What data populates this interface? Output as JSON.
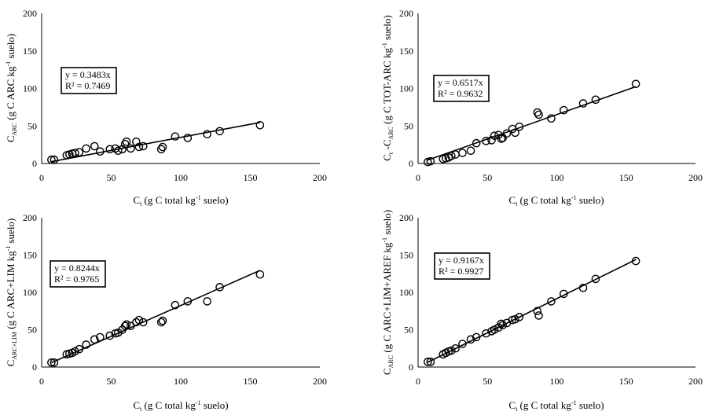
{
  "chart_data": [
    {
      "type": "scatter",
      "id": "panel-a",
      "xlabel": {
        "main": "C",
        "sub": "t",
        "text": " (g C total kg",
        "sup": "-1",
        "tail": " suelo)"
      },
      "ylabel": {
        "main": "C",
        "sub": "ARC",
        "text": " (g C ARC kg",
        "sup": "-1",
        "tail": " suelo)"
      },
      "xlim": [
        0,
        200
      ],
      "ylim": [
        0,
        200
      ],
      "x_ticks": [
        "0",
        "50",
        "100",
        "150",
        "200"
      ],
      "y_ticks": [
        "0",
        "50",
        "100",
        "150",
        "200"
      ],
      "equation": "y = 0.3483x",
      "r2": "R² = 0.7469",
      "slope": 0.3483,
      "points": [
        [
          7,
          5
        ],
        [
          9,
          5
        ],
        [
          18,
          11
        ],
        [
          20,
          12
        ],
        [
          22,
          13
        ],
        [
          24,
          14
        ],
        [
          27,
          15
        ],
        [
          32,
          20
        ],
        [
          38,
          23
        ],
        [
          42,
          16
        ],
        [
          49,
          19
        ],
        [
          53,
          20
        ],
        [
          55,
          17
        ],
        [
          58,
          19
        ],
        [
          60,
          26
        ],
        [
          61,
          29
        ],
        [
          64,
          20
        ],
        [
          68,
          29
        ],
        [
          70,
          22
        ],
        [
          73,
          23
        ],
        [
          86,
          19
        ],
        [
          87,
          22
        ],
        [
          96,
          36
        ],
        [
          105,
          34
        ],
        [
          119,
          39
        ],
        [
          128,
          43
        ],
        [
          157,
          51
        ]
      ]
    },
    {
      "type": "scatter",
      "id": "panel-b",
      "xlabel": {
        "main": "C",
        "sub": "t",
        "text": " (g C total kg",
        "sup": "-1",
        "tail": " suelo)"
      },
      "ylabel": {
        "main": "C",
        "sub": "t",
        "text": " -C",
        "sub2": "ARC",
        "text2": " (g C TOT-ARC kg",
        "sup": "-1",
        "tail": " suelo)"
      },
      "xlim": [
        0,
        200
      ],
      "ylim": [
        0,
        200
      ],
      "x_ticks": [
        "0",
        "50",
        "100",
        "150",
        "200"
      ],
      "y_ticks": [
        "0",
        "50",
        "100",
        "150",
        "200"
      ],
      "equation": "y = 0.6517x",
      "r2": "R² = 0.9632",
      "slope": 0.6517,
      "points": [
        [
          7,
          2
        ],
        [
          9,
          3
        ],
        [
          18,
          6
        ],
        [
          20,
          7
        ],
        [
          22,
          8
        ],
        [
          24,
          10
        ],
        [
          27,
          12
        ],
        [
          32,
          14
        ],
        [
          38,
          17
        ],
        [
          42,
          27
        ],
        [
          49,
          30
        ],
        [
          53,
          31
        ],
        [
          55,
          37
        ],
        [
          58,
          38
        ],
        [
          60,
          33
        ],
        [
          61,
          34
        ],
        [
          64,
          40
        ],
        [
          68,
          46
        ],
        [
          70,
          41
        ],
        [
          73,
          49
        ],
        [
          86,
          68
        ],
        [
          87,
          65
        ],
        [
          96,
          60
        ],
        [
          105,
          71
        ],
        [
          119,
          80
        ],
        [
          128,
          85
        ],
        [
          157,
          106
        ]
      ]
    },
    {
      "type": "scatter",
      "id": "panel-c",
      "xlabel": {
        "main": "C",
        "sub": "t",
        "text": " (g C total kg",
        "sup": "-1",
        "tail": " suelo)"
      },
      "ylabel": {
        "main": "C",
        "sub": "ARC+LIM",
        "text": " (g C ARC+LIM kg",
        "sup": "-1",
        "tail": " suelo)"
      },
      "xlim": [
        0,
        200
      ],
      "ylim": [
        0,
        200
      ],
      "x_ticks": [
        "0",
        "50",
        "100",
        "150",
        "200"
      ],
      "y_ticks": [
        "0",
        "50",
        "100",
        "150",
        "200"
      ],
      "equation": "y = 0.8244x",
      "r2": "R² = 0.9765",
      "slope": 0.8244,
      "points": [
        [
          7,
          6
        ],
        [
          9,
          6
        ],
        [
          18,
          17
        ],
        [
          20,
          18
        ],
        [
          22,
          19
        ],
        [
          24,
          21
        ],
        [
          27,
          24
        ],
        [
          32,
          30
        ],
        [
          38,
          37
        ],
        [
          42,
          40
        ],
        [
          49,
          42
        ],
        [
          53,
          45
        ],
        [
          55,
          46
        ],
        [
          58,
          50
        ],
        [
          60,
          55
        ],
        [
          61,
          57
        ],
        [
          64,
          55
        ],
        [
          68,
          60
        ],
        [
          70,
          63
        ],
        [
          73,
          60
        ],
        [
          86,
          60
        ],
        [
          87,
          62
        ],
        [
          96,
          83
        ],
        [
          105,
          88
        ],
        [
          119,
          88
        ],
        [
          128,
          107
        ],
        [
          157,
          124
        ]
      ]
    },
    {
      "type": "scatter",
      "id": "panel-d",
      "xlabel": {
        "main": "C",
        "sub": "t",
        "text": " (g C total kg",
        "sup": "-1",
        "tail": " suelo)"
      },
      "ylabel": {
        "main": "C",
        "sub": "ARC",
        "text": " (g C ARC+LIM+AREF kg",
        "sup": "-1",
        "tail": " suelo)"
      },
      "xlim": [
        0,
        200
      ],
      "ylim": [
        0,
        200
      ],
      "x_ticks": [
        "0",
        "50",
        "100",
        "150",
        "200"
      ],
      "y_ticks": [
        "0",
        "50",
        "100",
        "150",
        "200"
      ],
      "equation": "y = 0.9167x",
      "r2": "R² = 0.9927",
      "slope": 0.9167,
      "points": [
        [
          7,
          7
        ],
        [
          9,
          7
        ],
        [
          18,
          17
        ],
        [
          20,
          19
        ],
        [
          22,
          21
        ],
        [
          24,
          22
        ],
        [
          27,
          25
        ],
        [
          32,
          31
        ],
        [
          38,
          37
        ],
        [
          42,
          40
        ],
        [
          49,
          45
        ],
        [
          53,
          48
        ],
        [
          55,
          50
        ],
        [
          58,
          53
        ],
        [
          60,
          58
        ],
        [
          61,
          56
        ],
        [
          64,
          59
        ],
        [
          68,
          63
        ],
        [
          70,
          64
        ],
        [
          73,
          67
        ],
        [
          86,
          75
        ],
        [
          87,
          69
        ],
        [
          96,
          88
        ],
        [
          105,
          98
        ],
        [
          119,
          106
        ],
        [
          128,
          118
        ],
        [
          157,
          142
        ]
      ]
    }
  ]
}
